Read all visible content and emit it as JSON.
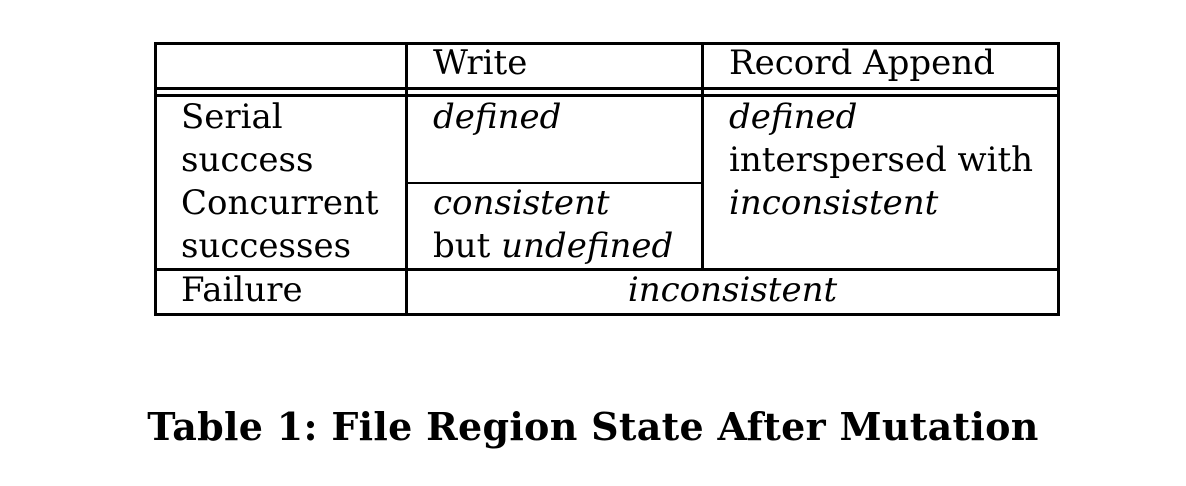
{
  "table": {
    "headers": [
      "",
      "Write",
      "Record Append"
    ],
    "rows": [
      {
        "label": [
          "Serial",
          "success"
        ],
        "write": [
          "defined"
        ],
        "append": [
          "defined",
          "interspersed with",
          "inconsistent"
        ]
      },
      {
        "label": [
          "Concurrent",
          "successes"
        ],
        "write": [
          "consistent",
          "but",
          "undefined"
        ]
      },
      {
        "label": [
          "Failure"
        ],
        "merged": "inconsistent"
      }
    ]
  },
  "caption": "Table 1: File Region State After Mutation"
}
